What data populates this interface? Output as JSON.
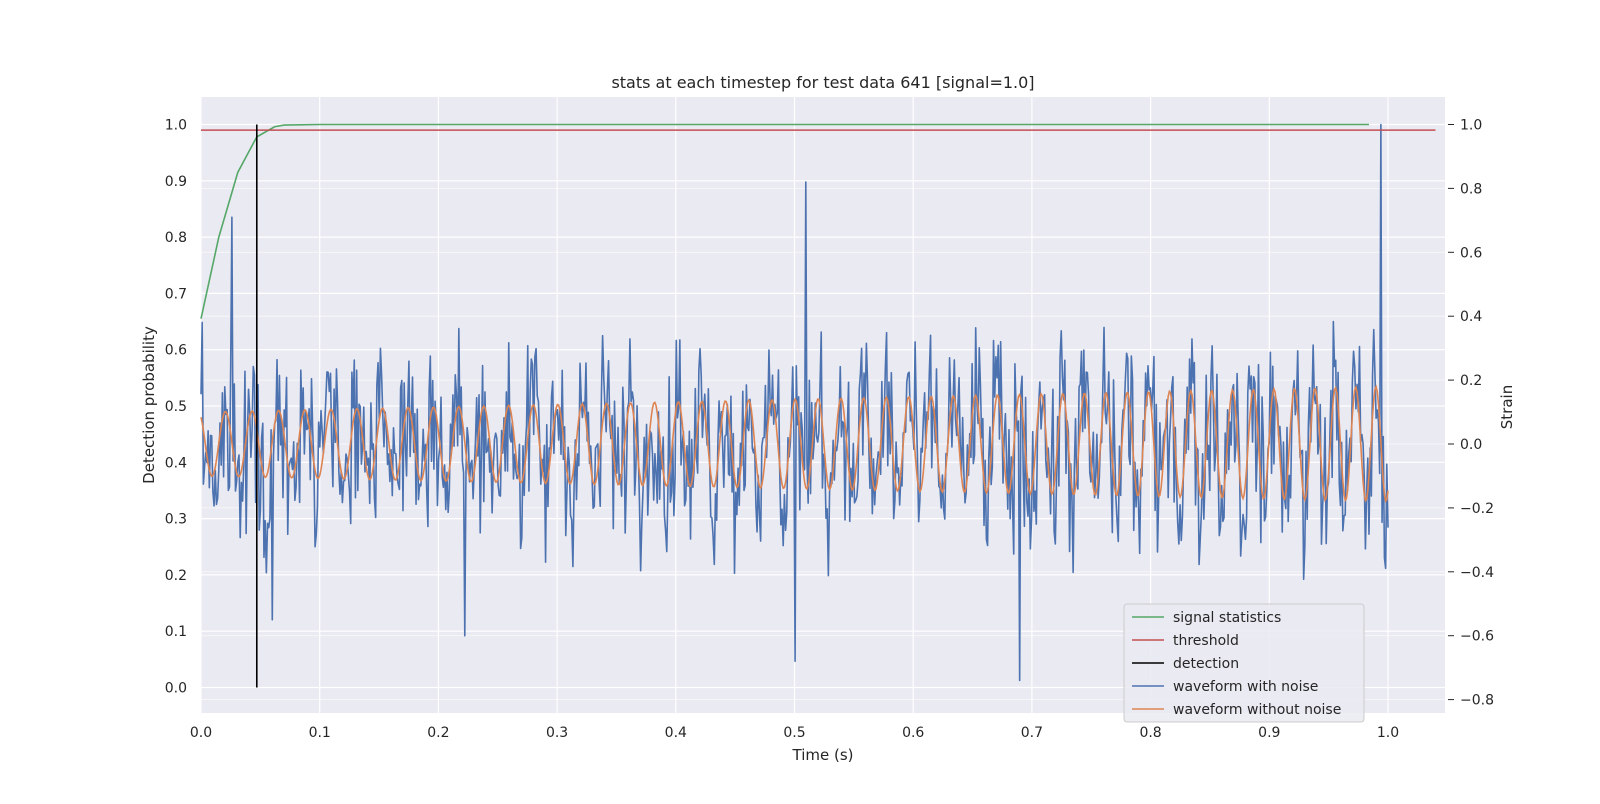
{
  "chart_data": {
    "type": "line",
    "title": "stats at each timestep for test data 641 [signal=1.0]",
    "xlabel": "Time (s)",
    "ylabel": "Detection probability",
    "y2label": "Strain",
    "xlim": [
      0.0,
      1.05
    ],
    "ylim": [
      -0.045,
      1.05
    ],
    "y2lim": [
      -0.85,
      1.07
    ],
    "xticks": [
      "0.0",
      "0.1",
      "0.2",
      "0.3",
      "0.4",
      "0.5",
      "0.6",
      "0.7",
      "0.8",
      "0.9",
      "1.0"
    ],
    "yticks": [
      "0.0",
      "0.1",
      "0.2",
      "0.3",
      "0.4",
      "0.5",
      "0.6",
      "0.7",
      "0.8",
      "0.9",
      "1.0"
    ],
    "y2ticks": [
      "−0.8",
      "−0.6",
      "−0.4",
      "−0.2",
      "0.0",
      "0.2",
      "0.4",
      "0.6",
      "0.8",
      "1.0"
    ],
    "grid": true,
    "legend_position": "lower-right",
    "legend": [
      {
        "label": "signal statistics",
        "color": "#55a868"
      },
      {
        "label": "threshold",
        "color": "#c44e52"
      },
      {
        "label": "detection",
        "color": "#000000"
      },
      {
        "label": "waveform with noise",
        "color": "#4c72b0"
      },
      {
        "label": "waveform without noise",
        "color": "#dd8452"
      }
    ],
    "signal_statistics": {
      "x": [
        0.0,
        0.015,
        0.031,
        0.047,
        0.062,
        0.07,
        0.1,
        0.5,
        0.984
      ],
      "y": [
        0.655,
        0.8,
        0.915,
        0.978,
        0.996,
        0.999,
        1.0,
        1.0,
        1.0
      ]
    },
    "threshold": {
      "y": 0.99,
      "x": [
        0.0,
        1.04
      ]
    },
    "detection": {
      "x": 0.047,
      "y": [
        0.0,
        1.0
      ]
    },
    "waveform_with_noise": {
      "points": 1000,
      "x_range": [
        0.0,
        1.0
      ],
      "strain_min": -0.76,
      "strain_max": 1.0,
      "note_points": [
        [
          0.026,
          0.71
        ],
        [
          0.06,
          -0.55
        ],
        [
          0.222,
          -0.6
        ],
        [
          0.5,
          -0.68
        ],
        [
          0.51,
          0.82
        ],
        [
          0.69,
          -0.74
        ],
        [
          0.994,
          1.0
        ]
      ]
    },
    "waveform_without_noise": {
      "points": 1000,
      "x_range": [
        0.0,
        1.0
      ],
      "frequency_hz": [
        44,
        59
      ],
      "amplitude": [
        0.1,
        0.18
      ]
    }
  }
}
